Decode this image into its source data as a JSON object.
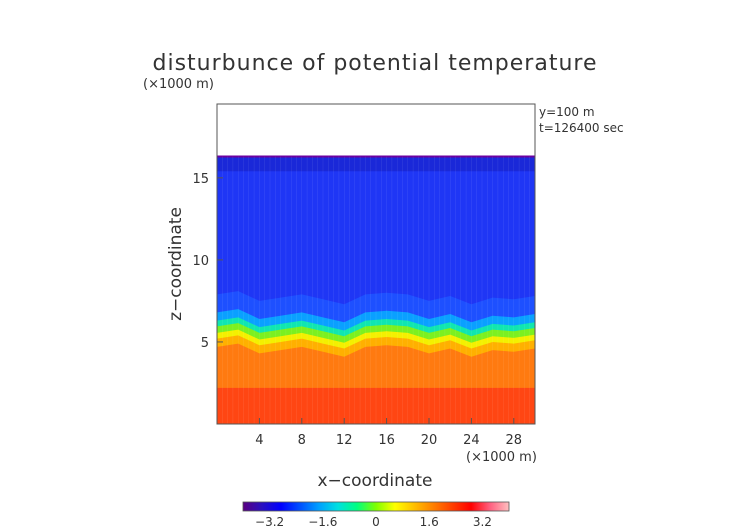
{
  "chart_data": {
    "type": "heatmap",
    "title": "disturbunce of potential temperature",
    "y_unit_label": "(×1000 m)",
    "x_unit_label": "(×1000 m)",
    "xlabel": "x−coordinate",
    "ylabel": "z−coordinate",
    "annotations": [
      "y=100 m",
      "t=126400 sec"
    ],
    "xlim": [
      0,
      30
    ],
    "ylim": [
      0,
      19.5
    ],
    "x_ticks": [
      4,
      8,
      12,
      16,
      20,
      24,
      28
    ],
    "x_tick_labels": [
      "4",
      "8",
      "12",
      "16",
      "20",
      "24",
      "28"
    ],
    "y_ticks": [
      5,
      10,
      15
    ],
    "y_tick_labels": [
      "5",
      "10",
      "15"
    ],
    "data_top_z": 16.3,
    "colorbar": {
      "min": -4,
      "max": 4,
      "ticks": [
        -3.2,
        -1.6,
        0,
        1.6,
        3.2
      ],
      "tick_labels": [
        "−3.2",
        "−1.6",
        "0",
        "1.6",
        "3.2"
      ],
      "colors": [
        "#5a0080",
        "#2a10c0",
        "#0000ff",
        "#0050ff",
        "#00a0ff",
        "#00e0e0",
        "#00ff80",
        "#80ff00",
        "#ffff00",
        "#ffc000",
        "#ff8000",
        "#ff4000",
        "#ff0000",
        "#ff6080",
        "#ffc0c0"
      ]
    },
    "field_description": {
      "upper_layer_value": -2.3,
      "lower_layer_value": 2.4,
      "interface_profile_x": [
        0,
        2,
        4,
        6,
        8,
        10,
        12,
        14,
        16,
        18,
        20,
        22,
        24,
        26,
        28,
        30
      ],
      "interface_profile_z": [
        5.6,
        5.8,
        5.2,
        5.4,
        5.6,
        5.3,
        5.0,
        5.6,
        5.7,
        5.6,
        5.2,
        5.5,
        5.0,
        5.4,
        5.3,
        5.5
      ]
    },
    "grid": false
  }
}
